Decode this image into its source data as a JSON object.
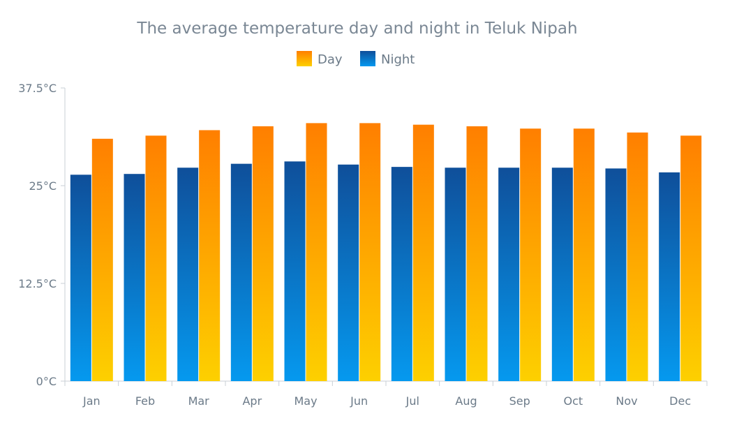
{
  "chart_data": {
    "type": "bar",
    "title": "The average temperature day and night in Teluk Nipah",
    "xlabel": "",
    "ylabel": "",
    "categories": [
      "Jan",
      "Feb",
      "Mar",
      "Apr",
      "May",
      "Jun",
      "Jul",
      "Aug",
      "Sep",
      "Oct",
      "Nov",
      "Dec"
    ],
    "series": [
      {
        "name": "Night",
        "color_top": "#0f4f9a",
        "color_bottom": "#0599ef",
        "values": [
          26.4,
          26.5,
          27.3,
          27.8,
          28.1,
          27.7,
          27.4,
          27.3,
          27.3,
          27.3,
          27.2,
          26.7
        ]
      },
      {
        "name": "Day",
        "color_top": "#ff7f00",
        "color_bottom": "#fdd000",
        "values": [
          31.0,
          31.4,
          32.1,
          32.6,
          33.0,
          33.0,
          32.8,
          32.6,
          32.3,
          32.3,
          31.8,
          31.4
        ]
      }
    ],
    "legend_order": [
      "Day",
      "Night"
    ],
    "ylim": [
      0,
      37.5
    ],
    "yticks": [
      0,
      12.5,
      25,
      37.5
    ],
    "ytick_labels": [
      "0°C",
      "12.5°C",
      "25°C",
      "37.5°C"
    ],
    "grid": false,
    "legend_position": "top-center"
  }
}
